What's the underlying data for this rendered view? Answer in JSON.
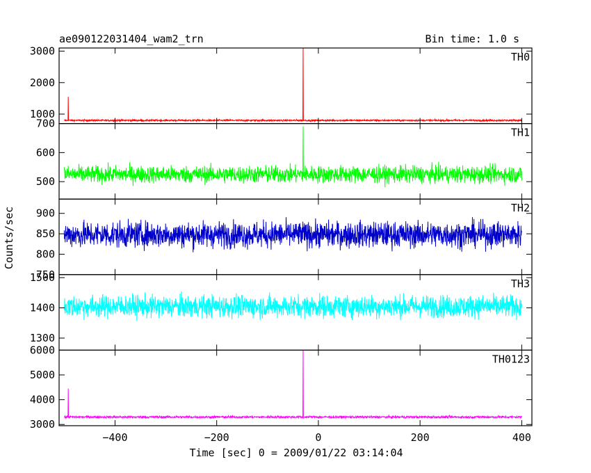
{
  "header": {
    "title": "ae090122031404_wam2_trn",
    "bin_time": "Bin time: 1.0 s"
  },
  "axes": {
    "xlabel": "Time [sec] 0 = 2009/01/22 03:14:04",
    "ylabel": "Counts/sec"
  },
  "chart_data": {
    "type": "line",
    "title": "ae090122031404_wam2_trn",
    "xlabel": "Time [sec] 0 = 2009/01/22 03:14:04",
    "ylabel": "Counts/sec",
    "xlim": [
      -510,
      420
    ],
    "x_ticks": [
      -400,
      -200,
      0,
      200,
      400
    ],
    "x_tick_labels": [
      "−400",
      "−200",
      "0",
      "200",
      "400"
    ],
    "grid": false,
    "panels": [
      {
        "name": "TH0",
        "color": "#ff0000",
        "ylim": [
          700,
          3100
        ],
        "y_ticks": [
          1000,
          2000,
          3000
        ],
        "y_tick_labels": [
          "1000",
          "2000",
          "3000"
        ],
        "x_range": [
          -500,
          400
        ],
        "baseline": 800,
        "noise": 25,
        "spikes": [
          {
            "x": -492,
            "y": 1550
          },
          {
            "x": -30,
            "y": 3100
          }
        ]
      },
      {
        "name": "TH1",
        "color": "#00ff00",
        "ylim": [
          440,
          700
        ],
        "y_ticks": [
          500,
          600,
          700
        ],
        "y_tick_labels": [
          "500",
          "600",
          "700"
        ],
        "x_range": [
          -500,
          400
        ],
        "baseline": 525,
        "noise": 28,
        "spikes": [
          {
            "x": -30,
            "y": 690
          }
        ]
      },
      {
        "name": "TH2",
        "color": "#0000cd",
        "ylim": [
          750,
          935
        ],
        "y_ticks": [
          750,
          800,
          850,
          900
        ],
        "y_tick_labels": [
          "750",
          "800",
          "850",
          "900"
        ],
        "x_range": [
          -500,
          400
        ],
        "baseline": 848,
        "noise": 30,
        "spikes": []
      },
      {
        "name": "TH3",
        "color": "#00ffff",
        "ylim": [
          1260,
          1510
        ],
        "y_ticks": [
          1300,
          1400,
          1500
        ],
        "y_tick_labels": [
          "1300",
          "1400",
          "1500"
        ],
        "x_range": [
          -500,
          400
        ],
        "baseline": 1405,
        "noise": 35,
        "spikes": []
      },
      {
        "name": "TH0123",
        "color": "#ff00ff",
        "ylim": [
          2950,
          6000
        ],
        "y_ticks": [
          3000,
          4000,
          5000,
          6000
        ],
        "y_tick_labels": [
          "3000",
          "4000",
          "5000",
          "6000"
        ],
        "x_range": [
          -500,
          400
        ],
        "baseline": 3300,
        "noise": 45,
        "spikes": [
          {
            "x": -492,
            "y": 4450
          },
          {
            "x": -30,
            "y": 6000
          }
        ]
      }
    ]
  }
}
